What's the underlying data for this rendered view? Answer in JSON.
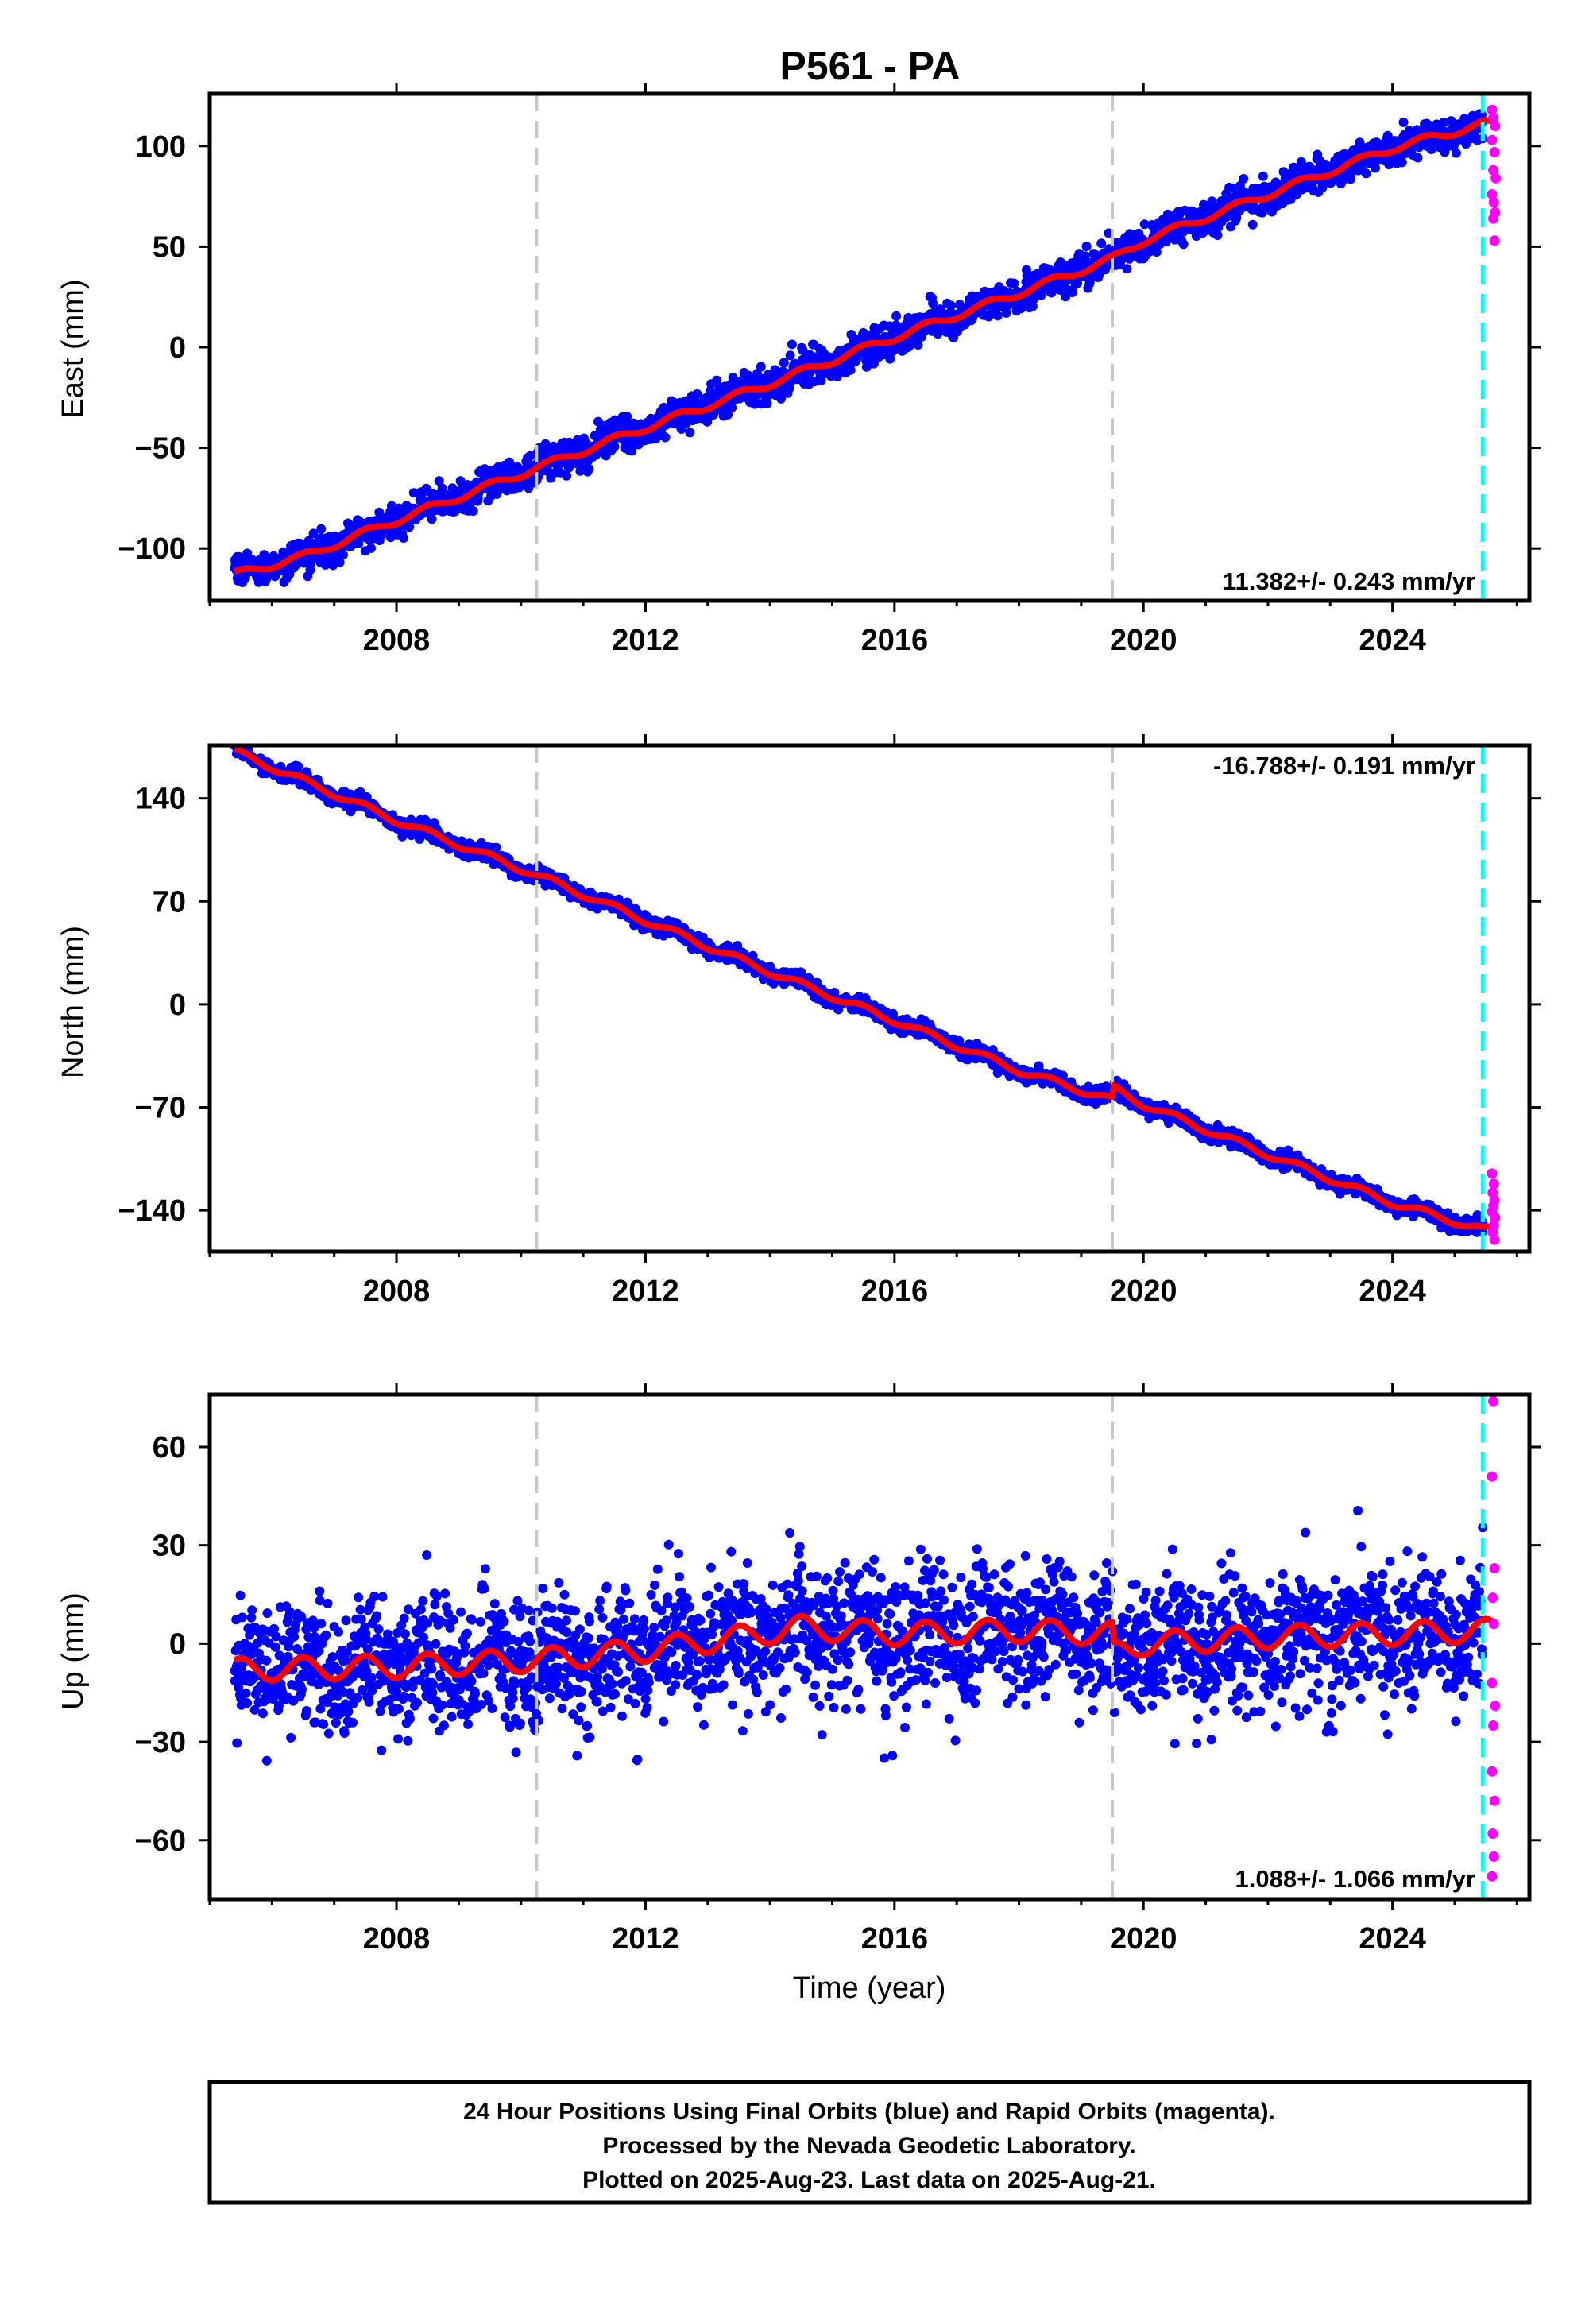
{
  "title": "P561 - PA",
  "colors": {
    "final_orbits": "#0000ff",
    "rapid_orbits": "#ff00ff",
    "model_fit": "#ff0000",
    "equipment_change_lines": "#c8c8c8",
    "last_data_line": "#00ffff",
    "frame": "#000000"
  },
  "x_axis": {
    "label": "Time (year)",
    "range": [
      2005.0,
      2026.2
    ],
    "ticks": [
      2008,
      2012,
      2016,
      2020,
      2024
    ],
    "tick_labels": [
      "2008",
      "2012",
      "2016",
      "2020",
      "2024"
    ]
  },
  "caption": {
    "lines": [
      "24 Hour Positions Using Final Orbits (blue) and Rapid Orbits (magenta).",
      "Processed by the Nevada Geodetic Laboratory.",
      "Plotted on 2025-Aug-23. Last data on 2025-Aug-21."
    ]
  },
  "chart_data": [
    {
      "type": "scatter",
      "component": "east",
      "ylabel": "East (mm)",
      "ylim": [
        -126,
        126
      ],
      "yticks": [
        -100,
        -50,
        0,
        50,
        100
      ],
      "ytick_labels": [
        "−100",
        "−50",
        "0",
        "50",
        "100"
      ],
      "rate_label": "11.382+/- 0.243 mm/yr",
      "rate_position": "bottom-right",
      "vertical_lines": {
        "equipment_changes": [
          2010.25,
          2019.5
        ],
        "last_data": 2025.45
      },
      "series": [
        {
          "name": "Final Orbits",
          "style": "points",
          "color": "#0000ff",
          "x_range": [
            2005.4,
            2025.45
          ],
          "trend": [
            [
              2005.4,
              -113
            ],
            [
              2006.5,
              -104
            ],
            [
              2008.0,
              -86
            ],
            [
              2010.25,
              -60
            ],
            [
              2012.0,
              -40
            ],
            [
              2014.0,
              -18
            ],
            [
              2016.0,
              5
            ],
            [
              2018.0,
              27
            ],
            [
              2019.5,
              44
            ],
            [
              2020.0,
              53
            ],
            [
              2022.0,
              76
            ],
            [
              2024.0,
              99
            ],
            [
              2025.45,
              111
            ]
          ],
          "scatter_sd": 4
        },
        {
          "name": "Rapid Orbits",
          "style": "points",
          "color": "#ff00ff",
          "points": [
            [
              2025.6,
              118
            ],
            [
              2025.62,
              114
            ],
            [
              2025.65,
              110
            ],
            [
              2025.6,
              103
            ],
            [
              2025.64,
              97
            ],
            [
              2025.62,
              88
            ],
            [
              2025.66,
              84
            ],
            [
              2025.6,
              76
            ],
            [
              2025.63,
              72
            ],
            [
              2025.65,
              67
            ],
            [
              2025.62,
              64
            ],
            [
              2025.64,
              53
            ]
          ]
        },
        {
          "name": "Model fit",
          "style": "line",
          "color": "#ff0000",
          "seasonal_amplitude": 1.8,
          "x_range": [
            2005.4,
            2025.6
          ]
        }
      ]
    },
    {
      "type": "scatter",
      "component": "north",
      "ylabel": "North (mm)",
      "ylim": [
        -168,
        176
      ],
      "yticks": [
        -140,
        -70,
        0,
        70,
        140
      ],
      "ytick_labels": [
        "−140",
        "−70",
        "0",
        "70",
        "140"
      ],
      "rate_label": "-16.788+/- 0.191 mm/yr",
      "rate_position": "top-right",
      "vertical_lines": {
        "equipment_changes": [
          2010.25,
          2019.5
        ],
        "last_data": 2025.45
      },
      "series": [
        {
          "name": "Final Orbits",
          "style": "points",
          "color": "#0000ff",
          "x_range": [
            2005.4,
            2025.45
          ],
          "trend": [
            [
              2005.4,
              172
            ],
            [
              2008.0,
              125
            ],
            [
              2010.25,
              88
            ],
            [
              2012.0,
              57
            ],
            [
              2014.0,
              22
            ],
            [
              2016.0,
              -11
            ],
            [
              2018.0,
              -45
            ],
            [
              2019.5,
              -65
            ],
            [
              2019.52,
              -57
            ],
            [
              2020.0,
              -68
            ],
            [
              2022.0,
              -102
            ],
            [
              2024.0,
              -135
            ],
            [
              2025.45,
              -153
            ]
          ],
          "scatter_sd": 2.5
        },
        {
          "name": "Rapid Orbits",
          "style": "points",
          "color": "#ff00ff",
          "points": [
            [
              2025.6,
              -115
            ],
            [
              2025.63,
              -122
            ],
            [
              2025.61,
              -128
            ],
            [
              2025.64,
              -133
            ],
            [
              2025.62,
              -137
            ],
            [
              2025.6,
              -141
            ],
            [
              2025.65,
              -145
            ],
            [
              2025.63,
              -150
            ],
            [
              2025.61,
              -155
            ],
            [
              2025.64,
              -160
            ]
          ]
        },
        {
          "name": "Model fit",
          "style": "line",
          "color": "#ff0000",
          "seasonal_amplitude": 2.2,
          "x_range": [
            2005.4,
            2025.6
          ]
        }
      ]
    },
    {
      "type": "scatter",
      "component": "up",
      "ylabel": "Up (mm)",
      "ylim": [
        -78,
        76
      ],
      "yticks": [
        -60,
        -30,
        0,
        30,
        60
      ],
      "ytick_labels": [
        "−60",
        "−30",
        "0",
        "30",
        "60"
      ],
      "rate_label": "1.088+/- 1.066 mm/yr",
      "rate_position": "bottom-right",
      "vertical_lines": {
        "equipment_changes": [
          2010.25,
          2019.5
        ],
        "last_data": 2025.45
      },
      "series": [
        {
          "name": "Final Orbits",
          "style": "points",
          "color": "#0000ff",
          "x_range": [
            2005.4,
            2025.45
          ],
          "trend": [
            [
              2005.4,
              -8
            ],
            [
              2008.0,
              -7
            ],
            [
              2010.25,
              -5
            ],
            [
              2012.0,
              -2
            ],
            [
              2013.5,
              2
            ],
            [
              2014.5,
              5
            ],
            [
              2016.0,
              3
            ],
            [
              2018.0,
              4
            ],
            [
              2019.5,
              3
            ],
            [
              2019.52,
              -3
            ],
            [
              2020.0,
              0
            ],
            [
              2022.0,
              2
            ],
            [
              2024.0,
              3
            ],
            [
              2025.45,
              4
            ]
          ],
          "scatter_sd": 10
        },
        {
          "name": "Rapid Orbits",
          "style": "points",
          "color": "#ff00ff",
          "points": [
            [
              2025.62,
              74
            ],
            [
              2025.6,
              51
            ],
            [
              2025.64,
              23
            ],
            [
              2025.61,
              14
            ],
            [
              2025.63,
              6
            ],
            [
              2025.6,
              -12
            ],
            [
              2025.65,
              -19
            ],
            [
              2025.62,
              -25
            ],
            [
              2025.6,
              -39
            ],
            [
              2025.64,
              -48
            ],
            [
              2025.61,
              -58
            ],
            [
              2025.63,
              -65
            ],
            [
              2025.6,
              -71
            ]
          ]
        },
        {
          "name": "Model fit",
          "style": "line",
          "color": "#ff0000",
          "seasonal_amplitude": 3.5,
          "x_range": [
            2005.4,
            2025.6
          ]
        }
      ]
    }
  ]
}
